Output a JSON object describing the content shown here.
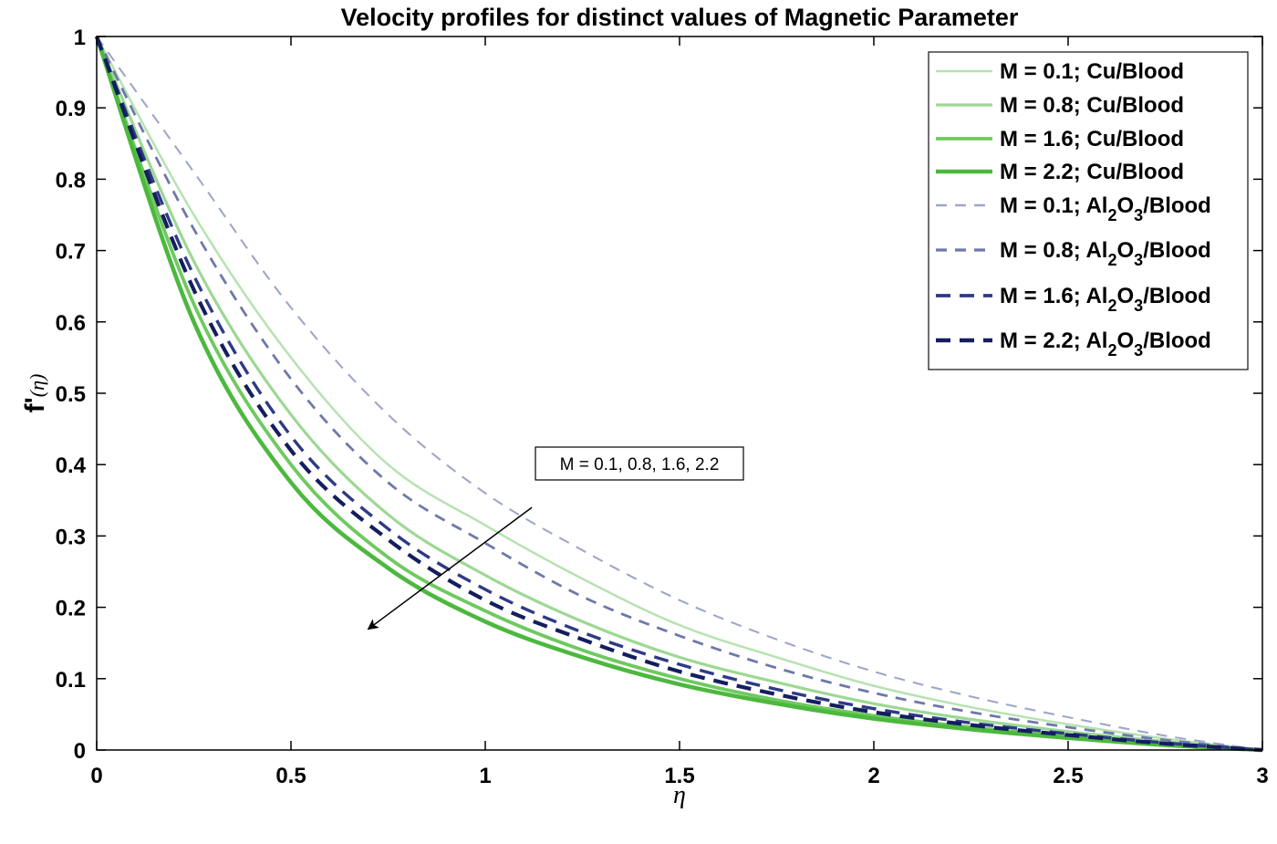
{
  "chart_data": {
    "type": "line",
    "title": "Velocity profiles for distinct values of Magnetic Parameter",
    "xlabel": "η",
    "ylabel": "f'(η)",
    "xlim": [
      0,
      3
    ],
    "ylim": [
      0,
      1
    ],
    "xticks": [
      "0",
      "0.5",
      "1",
      "1.5",
      "2",
      "2.5",
      "3"
    ],
    "yticks": [
      "0",
      "0.1",
      "0.2",
      "0.3",
      "0.4",
      "0.5",
      "0.6",
      "0.7",
      "0.8",
      "0.9",
      "1"
    ],
    "x": [
      0,
      0.25,
      0.5,
      0.75,
      1.0,
      1.25,
      1.5,
      1.75,
      2.0,
      2.25,
      2.5,
      2.75,
      3.0
    ],
    "grid": false,
    "legend_position": "top-right",
    "series": [
      {
        "name": "M = 0.1; Cu/Blood",
        "color": "#b7e2b1",
        "style": "solid",
        "values": [
          1,
          0.75,
          0.55,
          0.4,
          0.315,
          0.24,
          0.175,
          0.13,
          0.09,
          0.06,
          0.036,
          0.016,
          0
        ]
      },
      {
        "name": "M = 0.8; Cu/Blood",
        "color": "#9dd894",
        "style": "solid",
        "values": [
          1,
          0.685,
          0.47,
          0.33,
          0.245,
          0.18,
          0.13,
          0.095,
          0.065,
          0.043,
          0.026,
          0.012,
          0
        ]
      },
      {
        "name": "M = 1.6; Cu/Blood",
        "color": "#6fc960",
        "style": "solid",
        "values": [
          1,
          0.625,
          0.4,
          0.27,
          0.195,
          0.14,
          0.1,
          0.07,
          0.048,
          0.032,
          0.019,
          0.008,
          0
        ]
      },
      {
        "name": "M = 2.2; Cu/Blood",
        "color": "#4cb83e",
        "style": "solid",
        "values": [
          1,
          0.6,
          0.375,
          0.255,
          0.18,
          0.13,
          0.092,
          0.065,
          0.044,
          0.029,
          0.017,
          0.007,
          0
        ]
      },
      {
        "name": "M = 0.1; Al2O3/Blood",
        "color": "#9fa6c8",
        "style": "dashed",
        "values": [
          1,
          0.81,
          0.62,
          0.47,
          0.36,
          0.28,
          0.21,
          0.155,
          0.11,
          0.075,
          0.046,
          0.02,
          0
        ]
      },
      {
        "name": "M = 0.8; Al2O3/Blood",
        "color": "#6e78aa",
        "style": "dashed",
        "values": [
          1,
          0.73,
          0.52,
          0.375,
          0.29,
          0.215,
          0.16,
          0.115,
          0.08,
          0.053,
          0.032,
          0.014,
          0
        ]
      },
      {
        "name": "M = 1.6; Al2O3/Blood",
        "color": "#2e3a86",
        "style": "dashed",
        "values": [
          1,
          0.665,
          0.44,
          0.31,
          0.225,
          0.165,
          0.12,
          0.085,
          0.058,
          0.038,
          0.023,
          0.01,
          0
        ]
      },
      {
        "name": "M = 2.2; Al2O3/Blood",
        "color": "#141e5e",
        "style": "dashed",
        "values": [
          1,
          0.645,
          0.42,
          0.295,
          0.21,
          0.155,
          0.11,
          0.078,
          0.053,
          0.035,
          0.021,
          0.009,
          0
        ]
      }
    ],
    "legend_labels": [
      {
        "main": "M = 0.1; Cu/Blood"
      },
      {
        "main": "M = 0.8; Cu/Blood"
      },
      {
        "main": "M = 1.6; Cu/Blood"
      },
      {
        "main": "M = 2.2; Cu/Blood"
      },
      {
        "pre": "M = 0.1; Al",
        "sub1": "2",
        "mid": "O",
        "sub2": "3",
        "post": "/Blood"
      },
      {
        "pre": "M = 0.8; Al",
        "sub1": "2",
        "mid": "O",
        "sub2": "3",
        "post": "/Blood"
      },
      {
        "pre": "M = 1.6; Al",
        "sub1": "2",
        "mid": "O",
        "sub2": "3",
        "post": "/Blood"
      },
      {
        "pre": "M = 2.2; Al",
        "sub1": "2",
        "mid": "O",
        "sub2": "3",
        "post": "/Blood"
      }
    ],
    "annotation": {
      "text": "M = 0.1, 0.8, 1.6, 2.2",
      "arrow_from": [
        1.12,
        0.34
      ],
      "arrow_to": [
        0.7,
        0.17
      ]
    }
  }
}
